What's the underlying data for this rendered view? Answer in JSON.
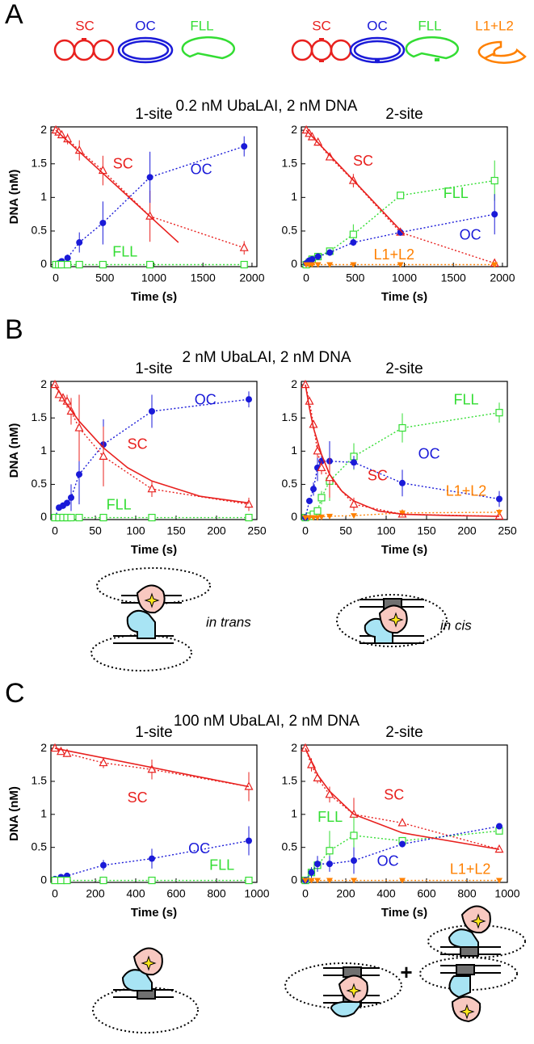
{
  "panels": [
    {
      "letter": "A",
      "title": "0.2 nM UbaLAI, 2 nM DNA"
    },
    {
      "letter": "B",
      "title": "2 nM UbaLAI, 2 nM DNA"
    },
    {
      "letter": "C",
      "title": "100 nM UbaLAI, 2 nM DNA"
    }
  ],
  "schematic_labels": [
    {
      "text": "SC",
      "color": "#e8201e"
    },
    {
      "text": "OC",
      "color": "#1a1ad8"
    },
    {
      "text": "FLL",
      "color": "#33dd33"
    },
    {
      "text": "SC",
      "color": "#e8201e"
    },
    {
      "text": "OC",
      "color": "#1a1ad8"
    },
    {
      "text": "FLL",
      "color": "#33dd33"
    },
    {
      "text": "L1+L2",
      "color": "#ff8000"
    }
  ],
  "diagram_labels": [
    "in trans",
    "in cis",
    "+"
  ],
  "chart_data": [
    {
      "type": "line",
      "title": "1-site",
      "xlabel": "Time (s)",
      "ylabel": "DNA (nM)",
      "x": [
        0,
        30,
        60,
        120,
        240,
        480,
        960,
        1920
      ],
      "xlim": [
        -50,
        2050
      ],
      "xticks": [
        0,
        500,
        1000,
        1500,
        2000
      ],
      "ylim": [
        -0.03,
        2.05
      ],
      "yticks": [
        0,
        0.5,
        1,
        1.5,
        2
      ],
      "series": [
        {
          "name": "SC",
          "color": "#e8201e",
          "marker": "triangle-open",
          "values": [
            2,
            1.97,
            1.93,
            1.87,
            1.7,
            1.4,
            0.72,
            0.25
          ],
          "errors": [
            0.03,
            0.04,
            0.05,
            0.08,
            0.15,
            0.22,
            0.38,
            0.1
          ]
        },
        {
          "name": "OC",
          "color": "#1a1ad8",
          "marker": "circle",
          "values": [
            0,
            0.02,
            0.05,
            0.1,
            0.33,
            0.62,
            1.3,
            1.76
          ],
          "errors": [
            0,
            0.02,
            0.03,
            0.05,
            0.15,
            0.32,
            0.38,
            0.15
          ]
        },
        {
          "name": "FLL",
          "color": "#33dd33",
          "marker": "square-open",
          "values": [
            0,
            0,
            0,
            0,
            0,
            0,
            0,
            0
          ],
          "errors": [
            0,
            0,
            0,
            0,
            0,
            0,
            0,
            0
          ]
        },
        {
          "color": "#e8201e",
          "line": "solid",
          "x": [
            0,
            1250
          ],
          "values": [
            2,
            0.33
          ]
        }
      ]
    },
    {
      "type": "line",
      "title": "2-site",
      "xlabel": "Time (s)",
      "x": [
        0,
        30,
        60,
        120,
        240,
        480,
        960,
        1920
      ],
      "xlim": [
        -50,
        2050
      ],
      "xticks": [
        0,
        500,
        1000,
        1500,
        2000
      ],
      "ylim": [
        -0.03,
        2.05
      ],
      "yticks": [
        0,
        0.5,
        1,
        1.5,
        2
      ],
      "series": [
        {
          "name": "SC",
          "color": "#e8201e",
          "marker": "triangle-open",
          "values": [
            2,
            1.95,
            1.9,
            1.82,
            1.6,
            1.25,
            0.48,
            0.02
          ],
          "errors": [
            0.03,
            0.04,
            0.05,
            0.05,
            0.05,
            0.1,
            0.05,
            0.02
          ]
        },
        {
          "name": "FLL",
          "color": "#33dd33",
          "marker": "square-open",
          "values": [
            0,
            0.03,
            0.08,
            0.12,
            0.2,
            0.45,
            1.03,
            1.25
          ],
          "errors": [
            0,
            0.02,
            0.03,
            0.03,
            0.05,
            0.15,
            0.05,
            0.3
          ]
        },
        {
          "name": "OC",
          "color": "#1a1ad8",
          "marker": "circle",
          "values": [
            0.02,
            0.06,
            0.08,
            0.12,
            0.18,
            0.33,
            0.48,
            0.75
          ],
          "errors": [
            0.02,
            0.04,
            0.04,
            0.05,
            0.05,
            0.05,
            0.05,
            0.3
          ]
        },
        {
          "name": "L1+L2",
          "color": "#ff8000",
          "marker": "triangle-down",
          "values": [
            0,
            0,
            0,
            0,
            0,
            0,
            0,
            0
          ],
          "errors": [
            0,
            0,
            0,
            0,
            0,
            0,
            0,
            0
          ]
        },
        {
          "color": "#e8201e",
          "line": "solid",
          "x": [
            0,
            1000
          ],
          "values": [
            2,
            0.45
          ]
        }
      ]
    },
    {
      "type": "line",
      "title": "1-site",
      "xlabel": "Time (s)",
      "ylabel": "DNA (nM)",
      "x": [
        0,
        5,
        10,
        15,
        20,
        30,
        60,
        120,
        240
      ],
      "xlim": [
        -5,
        250
      ],
      "xticks": [
        0,
        50,
        100,
        150,
        200,
        250
      ],
      "ylim": [
        -0.03,
        2.05
      ],
      "yticks": [
        0,
        0.5,
        1,
        1.5,
        2
      ],
      "series": [
        {
          "name": "OC",
          "color": "#1a1ad8",
          "marker": "circle",
          "values": [
            0,
            0.15,
            0.18,
            0.22,
            0.3,
            0.65,
            1.1,
            1.6,
            1.78
          ],
          "errors": [
            0,
            0.03,
            0.05,
            0.05,
            0.2,
            0.45,
            0.38,
            0.25,
            0.12
          ]
        },
        {
          "name": "SC",
          "color": "#e8201e",
          "marker": "triangle-open",
          "values": [
            2,
            1.85,
            1.8,
            1.75,
            1.6,
            1.35,
            0.92,
            0.43,
            0.2
          ],
          "errors": [
            0.02,
            0.05,
            0.05,
            0.1,
            0.2,
            0.5,
            0.45,
            0.12,
            0.1
          ]
        },
        {
          "name": "FLL",
          "color": "#33dd33",
          "marker": "square-open",
          "values": [
            0,
            0,
            0,
            0,
            0,
            0,
            0,
            0,
            0
          ],
          "errors": [
            0,
            0,
            0,
            0,
            0,
            0,
            0,
            0,
            0
          ]
        },
        {
          "color": "#e8201e",
          "line": "solid",
          "x": [
            0,
            15,
            30,
            60,
            90,
            120,
            180,
            240
          ],
          "values": [
            2,
            1.7,
            1.45,
            1.05,
            0.75,
            0.55,
            0.32,
            0.22
          ]
        }
      ]
    },
    {
      "type": "line",
      "title": "2-site",
      "xlabel": "Time (s)",
      "x": [
        0,
        5,
        10,
        15,
        20,
        30,
        60,
        120,
        240
      ],
      "xlim": [
        -5,
        250
      ],
      "xticks": [
        0,
        50,
        100,
        150,
        200,
        250
      ],
      "ylim": [
        -0.03,
        2.05
      ],
      "yticks": [
        0,
        0.5,
        1,
        1.5,
        2
      ],
      "series": [
        {
          "name": "FLL",
          "color": "#33dd33",
          "marker": "square-open",
          "values": [
            0,
            0.02,
            0.05,
            0.1,
            0.3,
            0.55,
            0.92,
            1.35,
            1.58
          ],
          "errors": [
            0,
            0.02,
            0.02,
            0.05,
            0.1,
            0.3,
            0.2,
            0.22,
            0.15
          ]
        },
        {
          "name": "OC",
          "color": "#1a1ad8",
          "marker": "circle",
          "values": [
            0,
            0.25,
            0.43,
            0.75,
            0.85,
            0.85,
            0.83,
            0.52,
            0.28
          ],
          "errors": [
            0,
            0.03,
            0.1,
            0.2,
            0.1,
            0.3,
            0.1,
            0.2,
            0.12
          ]
        },
        {
          "name": "SC",
          "color": "#e8201e",
          "marker": "triangle-open",
          "values": [
            2,
            1.75,
            1.4,
            1,
            0.75,
            0.6,
            0.2,
            0.05,
            0.02
          ],
          "errors": [
            0.02,
            0.05,
            0.05,
            0.1,
            0.1,
            0.3,
            0.1,
            0.05,
            0.02
          ]
        },
        {
          "name": "L1+L2",
          "color": "#ff8000",
          "marker": "triangle-down",
          "values": [
            0,
            0,
            0,
            0,
            0.01,
            0.02,
            0.03,
            0.07,
            0.08
          ],
          "errors": [
            0,
            0,
            0,
            0,
            0,
            0.01,
            0.03,
            0.05,
            0.05
          ]
        },
        {
          "color": "#e8201e",
          "line": "solid",
          "x": [
            0,
            5,
            10,
            20,
            30,
            45,
            60,
            90,
            120,
            180,
            240
          ],
          "values": [
            2,
            1.65,
            1.35,
            0.95,
            0.65,
            0.4,
            0.25,
            0.1,
            0.05,
            0.03,
            0.02
          ]
        }
      ]
    },
    {
      "type": "line",
      "title": "1-site",
      "xlabel": "Time (s)",
      "ylabel": "DNA (nM)",
      "x": [
        0,
        30,
        60,
        240,
        480,
        960
      ],
      "xlim": [
        -20,
        1000
      ],
      "xticks": [
        0,
        200,
        400,
        600,
        800,
        1000
      ],
      "ylim": [
        -0.03,
        2.05
      ],
      "yticks": [
        0,
        0.5,
        1,
        1.5,
        2
      ],
      "series": [
        {
          "name": "SC",
          "color": "#e8201e",
          "marker": "triangle-open",
          "values": [
            2,
            1.95,
            1.92,
            1.78,
            1.68,
            1.42
          ],
          "errors": [
            0.03,
            0.05,
            0.05,
            0.08,
            0.15,
            0.22
          ]
        },
        {
          "name": "OC",
          "color": "#1a1ad8",
          "marker": "circle",
          "values": [
            0.02,
            0.05,
            0.07,
            0.23,
            0.33,
            0.6
          ],
          "errors": [
            0.02,
            0.03,
            0.03,
            0.08,
            0.15,
            0.22
          ]
        },
        {
          "name": "FLL",
          "color": "#33dd33",
          "marker": "square-open",
          "values": [
            0,
            0,
            0,
            0,
            0,
            0
          ],
          "errors": [
            0,
            0,
            0,
            0,
            0,
            0
          ]
        },
        {
          "color": "#e8201e",
          "line": "solid",
          "x": [
            0,
            960
          ],
          "values": [
            2,
            1.42
          ]
        }
      ]
    },
    {
      "type": "line",
      "title": "2-site",
      "xlabel": "Time (s)",
      "x": [
        0,
        30,
        60,
        120,
        240,
        480,
        960
      ],
      "xlim": [
        -20,
        1000
      ],
      "xticks": [
        0,
        200,
        400,
        600,
        800,
        1000
      ],
      "ylim": [
        -0.03,
        2.05
      ],
      "yticks": [
        0,
        0.5,
        1,
        1.5,
        2
      ],
      "series": [
        {
          "name": "SC",
          "color": "#e8201e",
          "marker": "triangle-open",
          "values": [
            2,
            1.75,
            1.55,
            1.3,
            1,
            0.87,
            0.47
          ],
          "errors": [
            0.02,
            0.1,
            0.08,
            0.12,
            0.25,
            0.03,
            0.03
          ]
        },
        {
          "name": "FLL",
          "color": "#33dd33",
          "marker": "square-open",
          "values": [
            0,
            0.12,
            0.23,
            0.45,
            0.68,
            0.6,
            0.75
          ],
          "errors": [
            0,
            0.08,
            0.1,
            0.3,
            0.28,
            0.05,
            0.03
          ]
        },
        {
          "name": "OC",
          "color": "#1a1ad8",
          "marker": "circle",
          "values": [
            0,
            0.12,
            0.25,
            0.25,
            0.3,
            0.55,
            0.82
          ],
          "errors": [
            0,
            0.08,
            0.12,
            0.12,
            0.2,
            0.05,
            0.03
          ]
        },
        {
          "name": "L1+L2",
          "color": "#ff8000",
          "marker": "triangle-down",
          "values": [
            0,
            0,
            0,
            0,
            0,
            0,
            0
          ],
          "errors": [
            0,
            0,
            0,
            0,
            0,
            0,
            0
          ]
        },
        {
          "color": "#e8201e",
          "line": "solid",
          "x": [
            0,
            60,
            120,
            240,
            480,
            960
          ],
          "values": [
            2,
            1.6,
            1.35,
            1,
            0.72,
            0.47
          ]
        }
      ]
    }
  ]
}
